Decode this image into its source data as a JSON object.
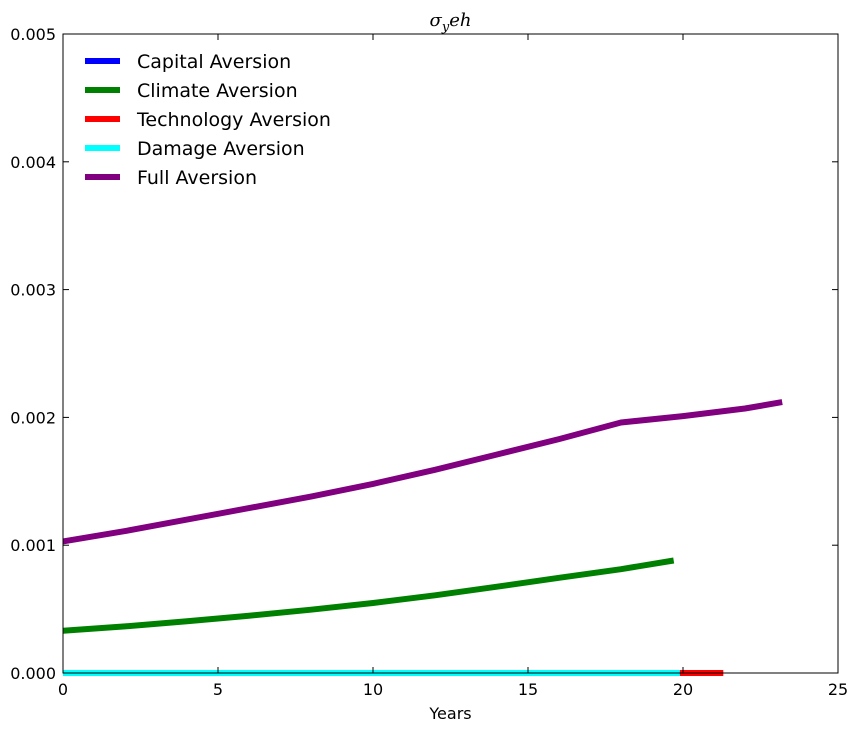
{
  "chart_data": {
    "type": "line",
    "title": "σ_y e h",
    "title_parts": {
      "main": "σ",
      "sub": "y",
      "rest": "eh"
    },
    "xlabel": "Years",
    "ylabel": "",
    "xlim": [
      0,
      25
    ],
    "ylim": [
      0,
      0.005
    ],
    "x_ticks": [
      "0",
      "5",
      "10",
      "15",
      "20",
      "25"
    ],
    "y_ticks": [
      "0.000",
      "0.001",
      "0.002",
      "0.003",
      "0.004",
      "0.005"
    ],
    "grid": false,
    "legend_position": "top-left",
    "series": [
      {
        "name": "Capital Aversion",
        "color": "#0000ff",
        "x": [
          0,
          19.9
        ],
        "y": [
          0,
          0
        ]
      },
      {
        "name": "Climate Aversion",
        "color": "#008000",
        "x": [
          0,
          2,
          4,
          6,
          8,
          10,
          12,
          14,
          16,
          18,
          19.7
        ],
        "y": [
          0.00033,
          0.000365,
          0.000405,
          0.000448,
          0.000495,
          0.000548,
          0.000608,
          0.000675,
          0.000745,
          0.000812,
          0.00088
        ]
      },
      {
        "name": "Technology Aversion",
        "color": "#ff0000",
        "x": [
          19.9,
          21.3
        ],
        "y": [
          0,
          0
        ]
      },
      {
        "name": "Damage Aversion",
        "color": "#00ffff",
        "x": [
          0,
          19.9
        ],
        "y": [
          0,
          0
        ]
      },
      {
        "name": "Full Aversion",
        "color": "#800080",
        "x": [
          0,
          2,
          4,
          6,
          8,
          10,
          12,
          14,
          16,
          18,
          20,
          22,
          23.2
        ],
        "y": [
          0.00103,
          0.00111,
          0.0012,
          0.00129,
          0.00138,
          0.00148,
          0.00159,
          0.00171,
          0.00183,
          0.00196,
          0.00201,
          0.00207,
          0.00212
        ]
      }
    ]
  }
}
